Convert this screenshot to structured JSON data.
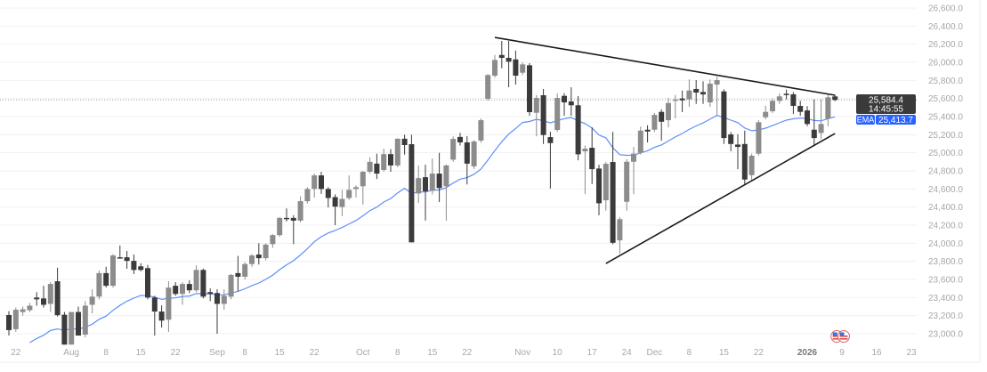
{
  "chart_data": {
    "type": "candlestick",
    "title": "",
    "xlabel": "",
    "ylabel": "",
    "ylim": [
      23000,
      26600
    ],
    "y_ticks": [
      23000,
      23200,
      23400,
      23600,
      23800,
      24000,
      24200,
      24400,
      24600,
      24800,
      25000,
      25200,
      25400,
      25600,
      25800,
      26000,
      26200,
      26400,
      26600
    ],
    "y_tick_format": "comma_one_decimal",
    "grid": "horizontal",
    "colors": {
      "up": "#8c8c8c",
      "down": "#3b3b3b",
      "ema": "#5b8ff9",
      "ema_badge": "#2962ff",
      "price_badge": "#3a3a3a",
      "trendline": "#1a1a1a"
    },
    "x_ticks": [
      {
        "label": "22",
        "date": "2025-07-22"
      },
      {
        "label": "Aug",
        "date": "2025-08-01"
      },
      {
        "label": "8",
        "date": "2025-08-08"
      },
      {
        "label": "15",
        "date": "2025-08-15"
      },
      {
        "label": "22",
        "date": "2025-08-22"
      },
      {
        "label": "Sep",
        "date": "2025-09-02"
      },
      {
        "label": "8",
        "date": "2025-09-08"
      },
      {
        "label": "15",
        "date": "2025-09-15"
      },
      {
        "label": "22",
        "date": "2025-09-22"
      },
      {
        "label": "Oct",
        "date": "2025-10-01"
      },
      {
        "label": "8",
        "date": "2025-10-08"
      },
      {
        "label": "15",
        "date": "2025-10-15"
      },
      {
        "label": "22",
        "date": "2025-10-22"
      },
      {
        "label": "Nov",
        "date": "2025-11-03"
      },
      {
        "label": "10",
        "date": "2025-11-10"
      },
      {
        "label": "17",
        "date": "2025-11-17"
      },
      {
        "label": "24",
        "date": "2025-11-24"
      },
      {
        "label": "Dec",
        "date": "2025-12-01"
      },
      {
        "label": "8",
        "date": "2025-12-08"
      },
      {
        "label": "15",
        "date": "2025-12-15"
      },
      {
        "label": "22",
        "date": "2025-12-22"
      },
      {
        "label": "2026",
        "date": "2026-01-02",
        "bold": true
      },
      {
        "label": "9",
        "date": "2026-01-09"
      },
      {
        "label": "16",
        "date": "2026-01-16"
      },
      {
        "label": "23",
        "date": "2026-01-23"
      }
    ],
    "candles_columns": [
      "date",
      "open",
      "high",
      "low",
      "close"
    ],
    "candles": [
      [
        "2025-07-21",
        23207,
        23250,
        22980,
        23040
      ],
      [
        "2025-07-22",
        23050,
        23290,
        23020,
        23265
      ],
      [
        "2025-07-23",
        23240,
        23300,
        23200,
        23270
      ],
      [
        "2025-07-24",
        23260,
        23340,
        23240,
        23310
      ],
      [
        "2025-07-25",
        23400,
        23460,
        23310,
        23380
      ],
      [
        "2025-07-28",
        23390,
        23530,
        23290,
        23320
      ],
      [
        "2025-07-29",
        23330,
        23570,
        23240,
        23550
      ],
      [
        "2025-07-30",
        23580,
        23730,
        23190,
        23205
      ],
      [
        "2025-07-31",
        23210,
        23240,
        22880,
        22880
      ],
      [
        "2025-08-01",
        22880,
        23240,
        22880,
        23240
      ],
      [
        "2025-08-04",
        23240,
        23300,
        22980,
        22980
      ],
      [
        "2025-08-05",
        22990,
        23360,
        22960,
        23310
      ],
      [
        "2025-08-06",
        23320,
        23490,
        23225,
        23410
      ],
      [
        "2025-08-07",
        23410,
        23700,
        23380,
        23670
      ],
      [
        "2025-08-08",
        23670,
        23740,
        23510,
        23530
      ],
      [
        "2025-08-11",
        23530,
        23880,
        23510,
        23865
      ],
      [
        "2025-08-12",
        23845,
        23975,
        23830,
        23835
      ],
      [
        "2025-08-13",
        23845,
        23915,
        23717,
        23805
      ],
      [
        "2025-08-14",
        23805,
        23875,
        23660,
        23705
      ],
      [
        "2025-08-15",
        23745,
        23780,
        23690,
        23705
      ],
      [
        "2025-08-18",
        23725,
        23760,
        23380,
        23400
      ],
      [
        "2025-08-19",
        23400,
        23420,
        22980,
        23245
      ],
      [
        "2025-08-20",
        23245,
        23313,
        23068,
        23145
      ],
      [
        "2025-08-21",
        23155,
        23580,
        23020,
        23510
      ],
      [
        "2025-08-22",
        23530,
        23570,
        23420,
        23440
      ],
      [
        "2025-08-25",
        23440,
        23570,
        23320,
        23550
      ],
      [
        "2025-08-26",
        23550,
        23590,
        23450,
        23480
      ],
      [
        "2025-08-27",
        23480,
        23755,
        23460,
        23705
      ],
      [
        "2025-08-28",
        23705,
        23720,
        23390,
        23410
      ],
      [
        "2025-08-29",
        23460,
        23500,
        23360,
        23440
      ],
      [
        "2025-09-02",
        23450,
        23490,
        23000,
        23330
      ],
      [
        "2025-09-03",
        23330,
        23490,
        23265,
        23420
      ],
      [
        "2025-09-04",
        23410,
        23660,
        23380,
        23650
      ],
      [
        "2025-09-05",
        23670,
        23860,
        23470,
        23630
      ],
      [
        "2025-09-08",
        23630,
        23790,
        23600,
        23770
      ],
      [
        "2025-09-09",
        23770,
        23880,
        23740,
        23865
      ],
      [
        "2025-09-10",
        23875,
        24000,
        23765,
        23835
      ],
      [
        "2025-09-11",
        23835,
        24000,
        23810,
        23985
      ],
      [
        "2025-09-12",
        23990,
        24100,
        23950,
        24090
      ],
      [
        "2025-09-15",
        24090,
        24290,
        24070,
        24280
      ],
      [
        "2025-09-16",
        24280,
        24385,
        24240,
        24270
      ],
      [
        "2025-09-17",
        24280,
        24310,
        23990,
        24250
      ],
      [
        "2025-09-18",
        24250,
        24520,
        24230,
        24465
      ],
      [
        "2025-09-19",
        24465,
        24620,
        24440,
        24600
      ],
      [
        "2025-09-22",
        24600,
        24770,
        24505,
        24750
      ],
      [
        "2025-09-23",
        24750,
        24790,
        24545,
        24600
      ],
      [
        "2025-09-24",
        24600,
        24620,
        24395,
        24500
      ],
      [
        "2025-09-25",
        24510,
        24540,
        24200,
        24405
      ],
      [
        "2025-09-26",
        24400,
        24590,
        24300,
        24490
      ],
      [
        "2025-09-29",
        24500,
        24750,
        24480,
        24590
      ],
      [
        "2025-09-30",
        24600,
        24640,
        24505,
        24620
      ],
      [
        "2025-10-01",
        24630,
        24800,
        24425,
        24790
      ],
      [
        "2025-10-02",
        24790,
        24950,
        24770,
        24900
      ],
      [
        "2025-10-03",
        24880,
        24990,
        24710,
        24770
      ],
      [
        "2025-10-06",
        24810,
        25045,
        24790,
        24985
      ],
      [
        "2025-10-07",
        24985,
        25040,
        24790,
        24860
      ],
      [
        "2025-10-08",
        24860,
        25160,
        24840,
        25155
      ],
      [
        "2025-10-09",
        25155,
        25200,
        24980,
        25085
      ],
      [
        "2025-10-10",
        25095,
        25200,
        24010,
        24010
      ],
      [
        "2025-10-13",
        24550,
        24860,
        24445,
        24720
      ],
      [
        "2025-10-14",
        24730,
        24868,
        24250,
        24575
      ],
      [
        "2025-10-15",
        24580,
        24937,
        24540,
        24770
      ],
      [
        "2025-10-16",
        24770,
        25000,
        24455,
        24610
      ],
      [
        "2025-10-17",
        24630,
        24870,
        24250,
        24860
      ],
      [
        "2025-10-20",
        24924,
        25180,
        24900,
        25153
      ],
      [
        "2025-10-21",
        25175,
        25220,
        25080,
        25115
      ],
      [
        "2025-10-22",
        25115,
        25183,
        24650,
        24880
      ],
      [
        "2025-10-23",
        24850,
        25140,
        24820,
        25125
      ],
      [
        "2025-10-24",
        25135,
        25380,
        25110,
        25360
      ],
      [
        "2025-10-27",
        25596,
        25870,
        25577,
        25859
      ],
      [
        "2025-10-28",
        25852,
        26081,
        25830,
        26026
      ],
      [
        "2025-10-29",
        26081,
        26236,
        25934,
        26049
      ],
      [
        "2025-10-30",
        26049,
        26236,
        25724,
        26007
      ],
      [
        "2025-10-31",
        26032,
        26130,
        25754,
        25852
      ],
      [
        "2025-11-03",
        25885,
        26000,
        25860,
        25977
      ],
      [
        "2025-11-04",
        25967,
        25990,
        25410,
        25449
      ],
      [
        "2025-11-05",
        25442,
        25640,
        25183,
        25606
      ],
      [
        "2025-11-06",
        25636,
        25705,
        25097,
        25196
      ],
      [
        "2025-11-07",
        25173,
        25232,
        24605,
        25107
      ],
      [
        "2025-11-10",
        25252,
        25655,
        25230,
        25606
      ],
      [
        "2025-11-11",
        25629,
        25660,
        25410,
        25557
      ],
      [
        "2025-11-12",
        25567,
        25724,
        25410,
        25525
      ],
      [
        "2025-11-13",
        25525,
        25626,
        24917,
        24983
      ],
      [
        "2025-11-14",
        25016,
        25080,
        24543,
        25045
      ],
      [
        "2025-11-17",
        25055,
        25281,
        24655,
        24819
      ],
      [
        "2025-11-18",
        24826,
        24868,
        24310,
        24442
      ],
      [
        "2025-11-19",
        24475,
        24900,
        24360,
        24878
      ],
      [
        "2025-11-20",
        24898,
        25232,
        23990,
        24005
      ],
      [
        "2025-11-21",
        24032,
        24290,
        23884,
        24266
      ],
      [
        "2025-11-24",
        24458,
        24930,
        24360,
        24901
      ],
      [
        "2025-11-25",
        24901,
        25065,
        24543,
        24990
      ],
      [
        "2025-11-26",
        25000,
        25290,
        24980,
        25245
      ],
      [
        "2025-11-28",
        25255,
        25304,
        25114,
        25235
      ],
      [
        "2025-12-01",
        25255,
        25440,
        25230,
        25419
      ],
      [
        "2025-12-02",
        25452,
        25480,
        25134,
        25343
      ],
      [
        "2025-12-03",
        25360,
        25606,
        25281,
        25550
      ],
      [
        "2025-12-04",
        25574,
        25639,
        25380,
        25590
      ],
      [
        "2025-12-05",
        25600,
        25688,
        25449,
        25580
      ],
      [
        "2025-12-08",
        25590,
        25810,
        25508,
        25688
      ],
      [
        "2025-12-09",
        25705,
        25803,
        25540,
        25665
      ],
      [
        "2025-12-10",
        25672,
        25790,
        25540,
        25645
      ],
      [
        "2025-12-11",
        25557,
        25810,
        25508,
        25764
      ],
      [
        "2025-12-12",
        25754,
        25842,
        25410,
        25803
      ],
      [
        "2025-12-15",
        25678,
        25700,
        25097,
        25163
      ],
      [
        "2025-12-16",
        25203,
        25230,
        25016,
        25097
      ],
      [
        "2025-12-17",
        25091,
        25206,
        24819,
        25065
      ],
      [
        "2025-12-18",
        25097,
        25245,
        24639,
        24704
      ],
      [
        "2025-12-19",
        24753,
        24990,
        24691,
        24967
      ],
      [
        "2025-12-22",
        24990,
        25360,
        24970,
        25337
      ],
      [
        "2025-12-23",
        25393,
        25520,
        25370,
        25452
      ],
      [
        "2025-12-24",
        25459,
        25600,
        25440,
        25574
      ],
      [
        "2025-12-26",
        25574,
        25655,
        25540,
        25623
      ],
      [
        "2025-12-29",
        25652,
        25698,
        25590,
        25639
      ],
      [
        "2025-12-30",
        25646,
        25670,
        25429,
        25518
      ],
      [
        "2025-12-31",
        25518,
        25574,
        25410,
        25452
      ],
      [
        "2026-01-02",
        25468,
        25515,
        25294,
        25318
      ],
      [
        "2026-01-05",
        25255,
        25590,
        25081,
        25163
      ],
      [
        "2026-01-06",
        25219,
        25590,
        25150,
        25318
      ],
      [
        "2026-01-07",
        25377,
        25640,
        25294,
        25613
      ],
      [
        "2026-01-08",
        25623,
        25640,
        25570,
        25584.4
      ]
    ],
    "indicator": {
      "name": "EMA",
      "period": 20,
      "last_value": "25,413.7"
    },
    "last_price": {
      "value": "25,584.4",
      "countdown": "14:45:55"
    },
    "trendlines": [
      {
        "from": {
          "date": "2025-10-28",
          "price": 26275
        },
        "to": {
          "date": "2026-01-08",
          "price": 25636
        }
      },
      {
        "from": {
          "date": "2025-11-19",
          "price": 23776
        },
        "to": {
          "date": "2026-01-08",
          "price": 25213
        }
      }
    ],
    "event_markers": [
      {
        "date": "2026-01-08",
        "icon": "us-flag-icon"
      },
      {
        "date": "2026-01-09",
        "icon": "us-flag-icon"
      }
    ]
  }
}
